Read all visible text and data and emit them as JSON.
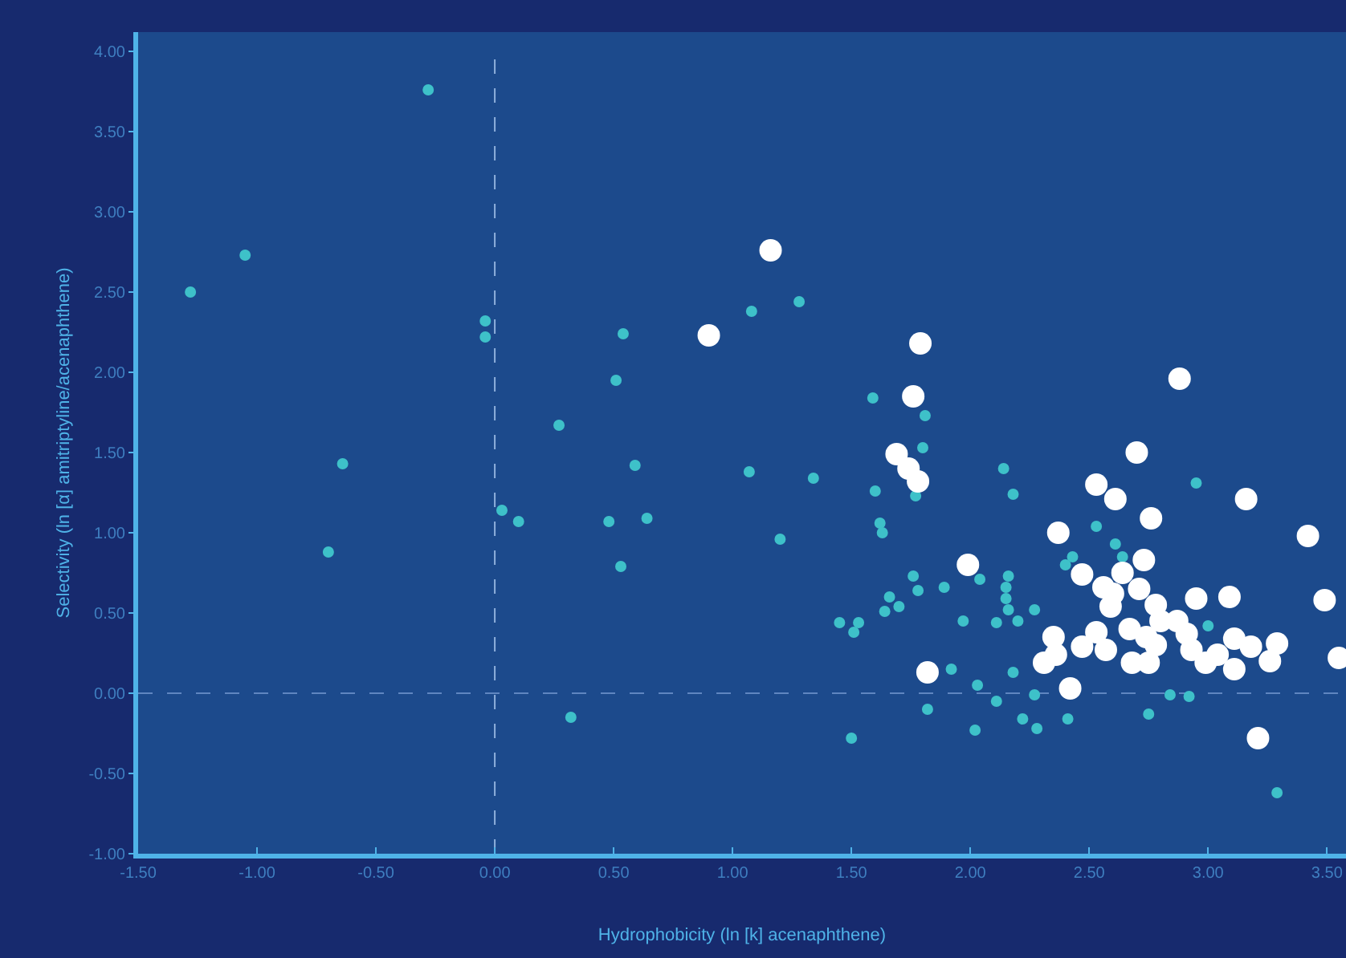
{
  "chart_data": {
    "type": "scatter",
    "xlabel": "Hydrophobicity (ln [k] acenaphthene)",
    "ylabel": "Selectivity (ln [α] amitriptyline/acenaphthene)",
    "xlim": [
      -1.5,
      3.58
    ],
    "ylim": [
      -1.0,
      4.12
    ],
    "xticks": [
      {
        "value": -1.5,
        "label": "-1.50"
      },
      {
        "value": -1.0,
        "label": "-1.00"
      },
      {
        "value": -0.5,
        "label": "-0.50"
      },
      {
        "value": 0,
        "label": "0.00"
      },
      {
        "value": 0.5,
        "label": "0.50"
      },
      {
        "value": 1.0,
        "label": "1.00"
      },
      {
        "value": 1.5,
        "label": "1.50"
      },
      {
        "value": 2.0,
        "label": "2.00"
      },
      {
        "value": 2.5,
        "label": "2.50"
      },
      {
        "value": 3.0,
        "label": "3.00"
      },
      {
        "value": 3.5,
        "label": "3.50"
      }
    ],
    "yticks": [
      {
        "value": -1.0,
        "label": "-1.00"
      },
      {
        "value": -0.5,
        "label": "-0.50"
      },
      {
        "value": 0,
        "label": "0.00"
      },
      {
        "value": 0.5,
        "label": "0.50"
      },
      {
        "value": 1.0,
        "label": "1.00"
      },
      {
        "value": 1.5,
        "label": "1.50"
      },
      {
        "value": 2.0,
        "label": "2.00"
      },
      {
        "value": 2.5,
        "label": "2.50"
      },
      {
        "value": 3.0,
        "label": "3.00"
      },
      {
        "value": 3.5,
        "label": "3.50"
      },
      {
        "value": 4.0,
        "label": "4.00"
      }
    ],
    "grid": false,
    "marker": "circle",
    "ref_lines": [
      {
        "axis": "x",
        "value": 0,
        "color": "#8fb0dc",
        "line_style": "dashed"
      },
      {
        "axis": "y",
        "value": 0,
        "color": "#5f86c0",
        "line_style": "dashed"
      }
    ],
    "series": [
      {
        "color": "#3ec1c9",
        "x": [
          -1.28,
          -1.05,
          -0.64,
          -0.7,
          -0.28,
          -0.04,
          -0.04,
          0.54,
          0.51,
          0.27,
          0.59,
          0.03,
          0.1,
          0.48,
          0.64,
          0.53,
          0.32,
          1.08,
          1.28,
          1.07,
          1.2,
          1.34,
          1.59,
          1.81,
          1.8,
          1.6,
          1.77,
          1.62,
          1.63,
          2.14,
          2.18,
          2.95,
          2.53,
          2.61,
          2.43,
          2.4,
          2.64,
          1.76,
          1.78,
          1.66,
          1.7,
          1.64,
          1.89,
          1.45,
          1.53,
          1.51,
          2.04,
          2.16,
          2.15,
          2.15,
          2.16,
          2.27,
          1.97,
          2.11,
          2.2,
          1.92,
          2.18,
          2.03,
          2.11,
          2.27,
          1.82,
          2.84,
          2.92,
          2.75,
          3.0,
          2.22,
          2.02,
          2.28,
          2.41,
          1.5,
          3.29
        ],
        "values": [
          2.5,
          2.73,
          1.43,
          0.88,
          3.76,
          2.32,
          2.22,
          2.24,
          1.95,
          1.67,
          1.42,
          1.14,
          1.07,
          1.07,
          1.09,
          0.79,
          -0.15,
          2.38,
          2.44,
          1.38,
          0.96,
          1.34,
          1.84,
          1.73,
          1.53,
          1.26,
          1.23,
          1.06,
          1.0,
          1.4,
          1.24,
          1.31,
          1.04,
          0.93,
          0.85,
          0.8,
          0.85,
          0.73,
          0.64,
          0.6,
          0.54,
          0.51,
          0.66,
          0.44,
          0.44,
          0.38,
          0.71,
          0.73,
          0.66,
          0.59,
          0.52,
          0.52,
          0.45,
          0.44,
          0.45,
          0.15,
          0.13,
          0.05,
          -0.05,
          -0.01,
          -0.1,
          -0.01,
          -0.02,
          -0.13,
          0.42,
          -0.16,
          -0.23,
          -0.22,
          -0.16,
          -0.28,
          -0.62
        ]
      },
      {
        "color": "#ffffff",
        "x": [
          1.16,
          0.9,
          1.79,
          1.76,
          1.69,
          1.74,
          1.78,
          2.88,
          2.7,
          2.53,
          2.61,
          2.76,
          3.16,
          3.42,
          2.37,
          2.73,
          1.99,
          2.47,
          2.56,
          2.64,
          2.6,
          2.71,
          2.59,
          3.49,
          2.95,
          3.09,
          2.78,
          3.55,
          1.82,
          2.42,
          2.35,
          2.31,
          2.36,
          2.47,
          2.53,
          2.57,
          2.67,
          2.68,
          2.75,
          2.74,
          2.8,
          2.78,
          2.87,
          2.91,
          2.93,
          2.99,
          3.04,
          3.11,
          3.11,
          3.18,
          3.26,
          3.29,
          3.21
        ],
        "values": [
          2.76,
          2.23,
          2.18,
          1.85,
          1.49,
          1.4,
          1.32,
          1.96,
          1.5,
          1.3,
          1.21,
          1.09,
          1.21,
          0.98,
          1.0,
          0.83,
          0.8,
          0.74,
          0.66,
          0.75,
          0.62,
          0.65,
          0.54,
          0.58,
          0.59,
          0.6,
          0.55,
          0.22,
          0.13,
          0.03,
          0.35,
          0.19,
          0.24,
          0.29,
          0.38,
          0.27,
          0.4,
          0.19,
          0.19,
          0.35,
          0.45,
          0.3,
          0.45,
          0.37,
          0.27,
          0.19,
          0.24,
          0.34,
          0.15,
          0.29,
          0.2,
          0.31,
          -0.28
        ]
      }
    ]
  }
}
